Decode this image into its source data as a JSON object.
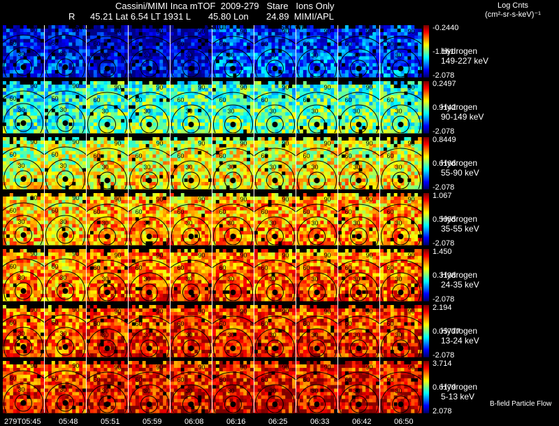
{
  "header": {
    "title": "Cassini/MIMI Inca mTOF  2009-279   Stare   Ions Only",
    "subtitle": "R      45.21 Lat 6.54 LT 1931 L       45.80 Lon       24.89  MIMI/APL"
  },
  "image_markers": [
    "satur",
    "satur",
    "skr wl"
  ],
  "legend": {
    "units_line1": "Log Cnts",
    "units_line2": "(cm²-sr-s-keV)⁻¹"
  },
  "chart_data": {
    "type": "heatmap",
    "title": "Cassini/MIMI Inca mTOF  2009-279   Stare   Ions Only",
    "time_labels": [
      "279T05:45",
      "05:48",
      "05:51",
      "05:59",
      "06:08",
      "06:16",
      "06:25",
      "06:33",
      "06:42",
      "06:50"
    ],
    "rows": [
      {
        "species": "Hydrogen",
        "energy": "149-227 keV",
        "cmax": "-0.2440",
        "cmid": "-1.161",
        "cmin": "-2.078",
        "level": 0.15
      },
      {
        "species": "Hydrogen",
        "energy": "90-149 keV",
        "cmax": "0.2497",
        "cmid": "0.9142",
        "cmin": "-2.078",
        "level": 0.42
      },
      {
        "species": "Hydrogen",
        "energy": "55-90 keV",
        "cmax": "0.8449",
        "cmid": "0.6166",
        "cmin": "-2.078",
        "level": 0.58
      },
      {
        "species": "Hydrogen",
        "energy": "35-55 keV",
        "cmax": "1.067",
        "cmid": "0.5055",
        "cmin": "-2.078",
        "level": 0.68
      },
      {
        "species": "Hydrogen",
        "energy": "24-35 keV",
        "cmax": "1.450",
        "cmid": "0.3138",
        "cmin": "-2.078",
        "level": 0.74
      },
      {
        "species": "Hydrogen",
        "energy": "13-24 keV",
        "cmax": "2.194",
        "cmid": "0.05777",
        "cmin": "-2.078",
        "level": 0.8
      },
      {
        "species": "Hydrogen",
        "energy": "5-13 keV",
        "cmax": "3.714",
        "cmid": "0.6179",
        "cmin": "2.078",
        "level": 0.84
      }
    ],
    "contour_labels": [
      "30",
      "60",
      "90",
      "120",
      "150",
      "180"
    ],
    "footer_label": "B-field Particle Flow"
  }
}
